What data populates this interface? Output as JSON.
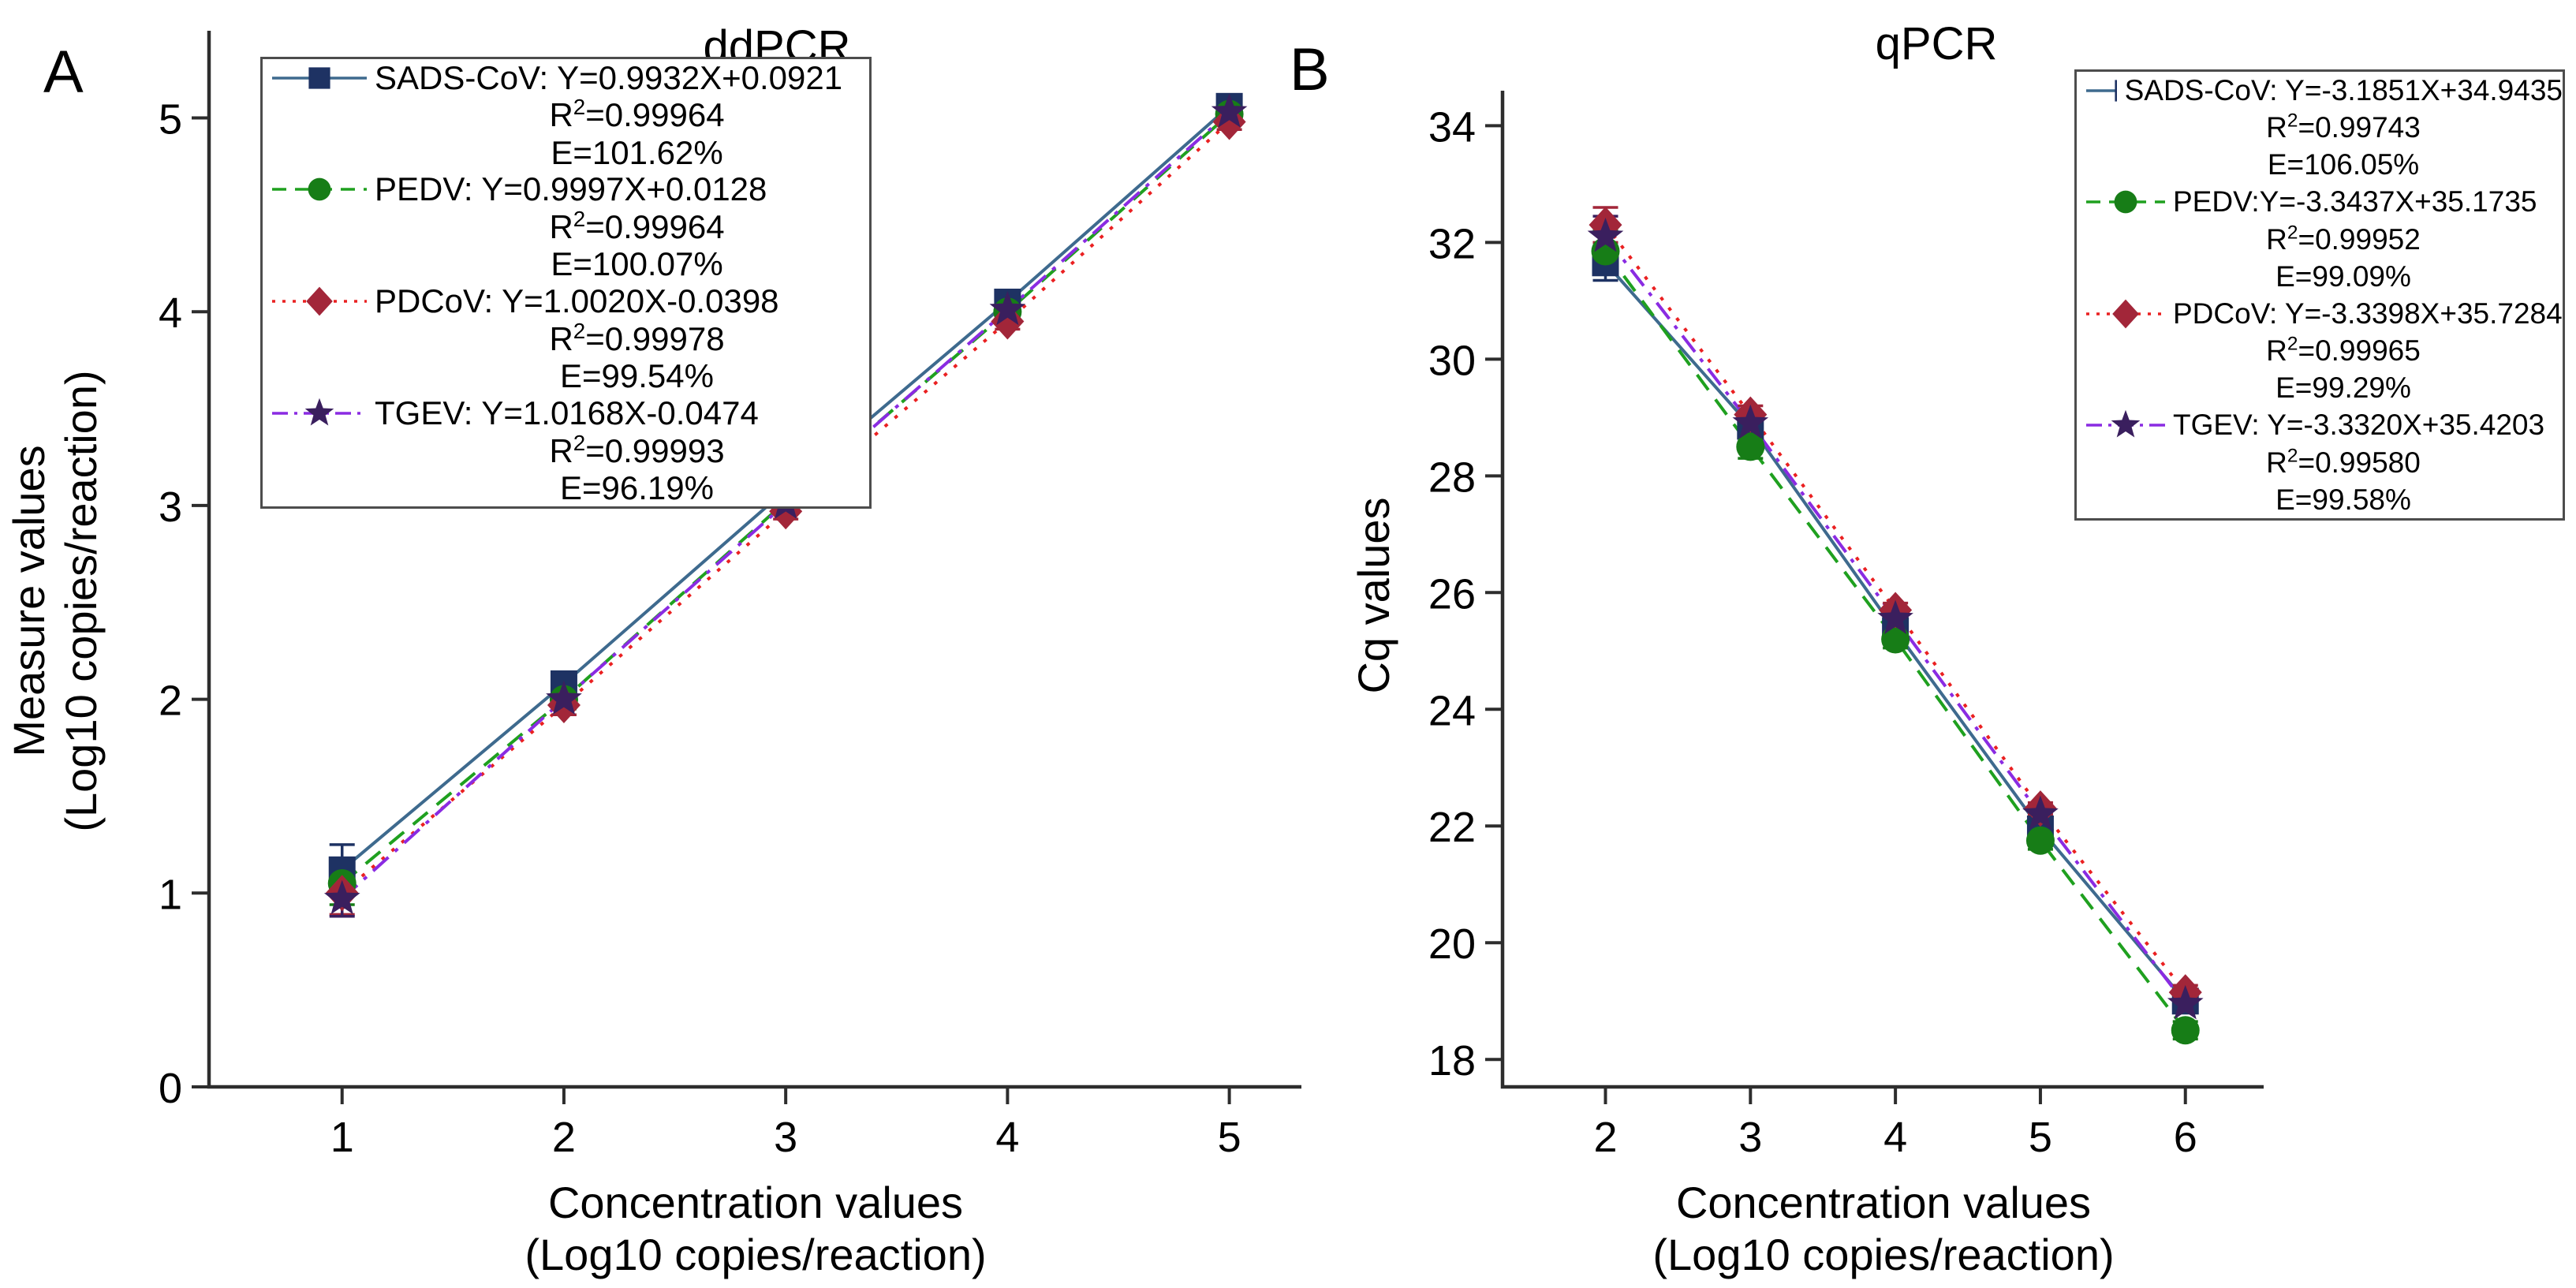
{
  "chart_data": [
    {
      "type": "line",
      "panel_letter": "A",
      "title": "ddPCR",
      "xlabel_line1": "Concentration values",
      "xlabel_line2": "(Log10 copies/reaction)",
      "ylabel_line1": "Measure values",
      "ylabel_line2": "(Log10 copies/reaction)",
      "x_ticks": [
        1,
        2,
        3,
        4,
        5
      ],
      "y_ticks": [
        0,
        1,
        2,
        3,
        4,
        5
      ],
      "x_range": [
        0.4,
        5.325
      ],
      "y_range": [
        0,
        5.45
      ],
      "legend_position": "top-left",
      "series": [
        {
          "name": "SADS-CoV",
          "legend_label": "SADS-CoV: Y=0.9932X+0.0921",
          "r2": "0.99964",
          "efficiency": "E=101.62%",
          "marker": "square",
          "marker_color": "#1e3263",
          "line_color": "#3e6a8e",
          "line_style": "solid",
          "x": [
            1,
            2,
            3,
            4,
            5
          ],
          "y": [
            1.12,
            2.08,
            3.08,
            4.05,
            5.06
          ],
          "y_err": [
            0.13,
            0.06,
            0.05,
            0.04,
            0.04
          ]
        },
        {
          "name": "PEDV",
          "legend_label": "PEDV: Y=0.9997X+0.0128",
          "r2": "0.99964",
          "efficiency": "E=100.07%",
          "marker": "circle",
          "marker_color": "#177d17",
          "line_color": "#1fa01f",
          "line_style": "dashed",
          "x": [
            1,
            2,
            3,
            4,
            5
          ],
          "y": [
            1.05,
            2.0,
            3.02,
            4.0,
            5.02
          ],
          "y_err": [
            0.11,
            0.05,
            0.04,
            0.03,
            0.03
          ]
        },
        {
          "name": "PDCoV",
          "legend_label": "PDCoV: Y=1.0020X-0.0398",
          "r2": "0.99978",
          "efficiency": "E=99.54%",
          "marker": "diamond",
          "marker_color": "#a22639",
          "line_color": "#ea2021",
          "line_style": "dotted",
          "x": [
            1,
            2,
            3,
            4,
            5
          ],
          "y": [
            1.0,
            1.97,
            2.97,
            3.95,
            4.98
          ],
          "y_err": [
            0.11,
            0.05,
            0.04,
            0.04,
            0.04
          ]
        },
        {
          "name": "TGEV",
          "legend_label": "TGEV: Y=1.0168X-0.0474",
          "r2": "0.99993",
          "efficiency": "E=96.19%",
          "marker": "star",
          "marker_color": "#3a1f5e",
          "line_color": "#8a2be2",
          "line_style": "dashdot",
          "x": [
            1,
            2,
            3,
            4,
            5
          ],
          "y": [
            0.97,
            2.0,
            3.01,
            4.01,
            5.03
          ],
          "y_err": [
            0.09,
            0.04,
            0.03,
            0.03,
            0.03
          ]
        }
      ]
    },
    {
      "type": "line",
      "panel_letter": "B",
      "title": "qPCR",
      "xlabel_line1": "Concentration values",
      "xlabel_line2": "(Log10 copies/reaction)",
      "ylabel_line1": "Cq values",
      "x_ticks": [
        2,
        3,
        4,
        5,
        6
      ],
      "y_ticks": [
        34,
        32,
        30,
        28,
        26,
        24,
        22,
        20,
        18
      ],
      "x_range": [
        1.29,
        6.54
      ],
      "y_range": [
        17.53,
        34.6
      ],
      "legend_position": "top-right",
      "series": [
        {
          "name": "SADS-CoV",
          "legend_label": "SADS-CoV: Y=-3.1851X+34.9435",
          "r2": "0.99743",
          "efficiency": "E=106.05%",
          "marker": "square",
          "marker_color": "#1e3263",
          "line_color": "#3e6a8e",
          "line_style": "solid",
          "x": [
            2,
            3,
            4,
            5,
            6
          ],
          "y": [
            31.65,
            28.85,
            25.35,
            21.95,
            19.0
          ],
          "y_err": [
            0.3,
            0.2,
            0.15,
            0.12,
            0.1
          ]
        },
        {
          "name": "PEDV",
          "legend_label": "PEDV:Y=-3.3437X+35.1735",
          "r2": "0.99952",
          "efficiency": "E=99.09%",
          "marker": "circle",
          "marker_color": "#177d17",
          "line_color": "#1fa01f",
          "line_style": "dashed",
          "x": [
            2,
            3,
            4,
            5,
            6
          ],
          "y": [
            31.85,
            28.5,
            25.2,
            21.75,
            18.5
          ],
          "y_err": [
            0.35,
            0.2,
            0.15,
            0.15,
            0.15
          ]
        },
        {
          "name": "PDCoV",
          "legend_label": "PDCoV: Y=-3.3398X+35.7284",
          "r2": "0.99965",
          "efficiency": "E=99.29%",
          "marker": "diamond",
          "marker_color": "#a22639",
          "line_color": "#ea2021",
          "line_style": "dotted",
          "x": [
            2,
            3,
            4,
            5,
            6
          ],
          "y": [
            32.3,
            29.05,
            25.7,
            22.3,
            19.15
          ],
          "y_err": [
            0.3,
            0.15,
            0.12,
            0.1,
            0.12
          ]
        },
        {
          "name": "TGEV",
          "legend_label": "TGEV: Y=-3.3320X+35.4203",
          "r2": "0.99580",
          "efficiency": "E=99.58%",
          "marker": "star",
          "marker_color": "#3a1f5e",
          "line_color": "#8a2be2",
          "line_style": "dashdot",
          "x": [
            2,
            3,
            4,
            5,
            6
          ],
          "y": [
            32.1,
            28.9,
            25.55,
            22.2,
            18.95
          ],
          "y_err": [
            0.35,
            0.2,
            0.15,
            0.1,
            0.12
          ]
        }
      ]
    }
  ]
}
